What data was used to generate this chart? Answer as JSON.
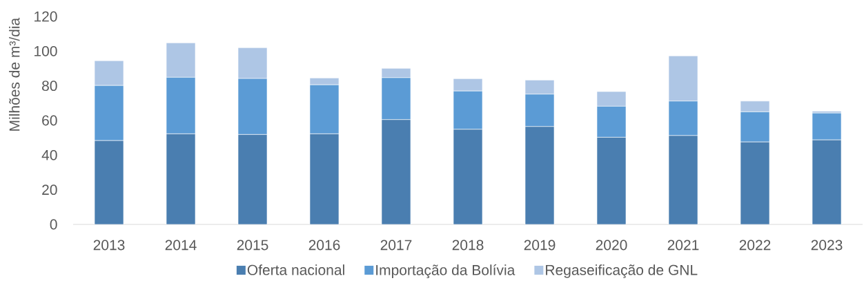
{
  "chart_data": {
    "type": "bar",
    "stacked": true,
    "ylabel": "Milhões de m³/dia",
    "categories": [
      "2013",
      "2014",
      "2015",
      "2016",
      "2017",
      "2018",
      "2019",
      "2020",
      "2021",
      "2022",
      "2023"
    ],
    "series": [
      {
        "name": "Oferta nacional",
        "color": "#4a7eb0",
        "values": [
          48.4,
          52.3,
          51.9,
          52.3,
          60.5,
          54.9,
          56.5,
          50.3,
          51.3,
          47.6,
          48.8
        ]
      },
      {
        "name": "Importação da Bolívia",
        "color": "#5b9bd5",
        "values": [
          31.8,
          32.6,
          32.3,
          28.3,
          24.2,
          22.1,
          18.7,
          17.9,
          19.9,
          17.4,
          15.5
        ]
      },
      {
        "name": "Regaseificação de GNL",
        "color": "#aec6e5",
        "values": [
          14.3,
          19.9,
          17.8,
          3.9,
          5.4,
          7.1,
          8.1,
          8.5,
          26.1,
          6.2,
          1.1
        ]
      }
    ],
    "ylim": [
      0,
      120
    ],
    "yticks": [
      0,
      20,
      40,
      60,
      80,
      100,
      120
    ],
    "legend": "bottom"
  }
}
